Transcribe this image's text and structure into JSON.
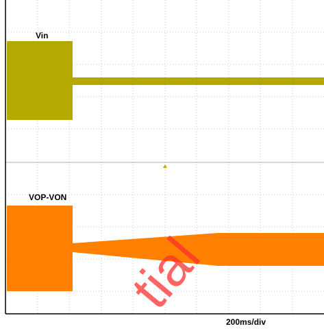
{
  "traces": [
    {
      "label": "Vin"
    },
    {
      "label": "VOP-VON"
    }
  ],
  "timebase": "200ms/div",
  "watermark": "tial"
}
